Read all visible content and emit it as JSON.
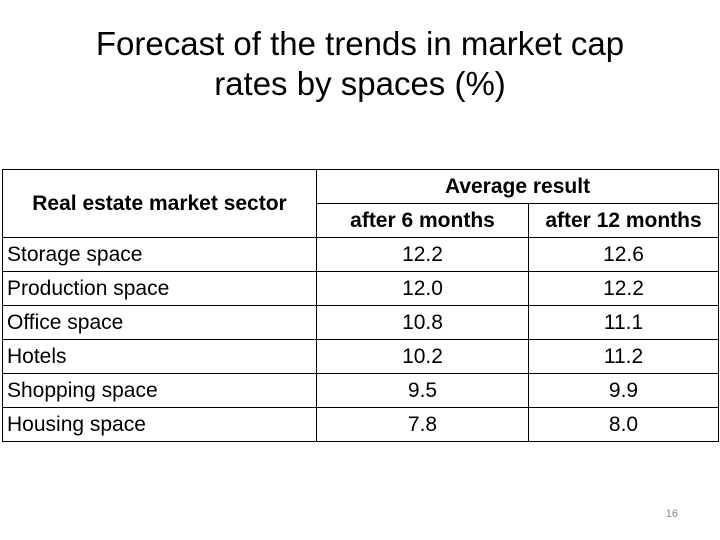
{
  "title": {
    "line1": "Forecast of the trends in market cap",
    "line2": "rates by spaces (%)"
  },
  "table": {
    "sector_header": "Real estate market sector",
    "group_header": "Average result",
    "sub_headers": [
      "after 6 months",
      "after 12 months"
    ],
    "rows": [
      {
        "sector": "Storage space",
        "m6": "12.2",
        "m12": "12.6"
      },
      {
        "sector": "Production space",
        "m6": "12.0",
        "m12": "12.2"
      },
      {
        "sector": "Office space",
        "m6": "10.8",
        "m12": "11.1"
      },
      {
        "sector": "Hotels",
        "m6": "10.2",
        "m12": "11.2"
      },
      {
        "sector": "Shopping space",
        "m6": "9.5",
        "m12": "9.9"
      },
      {
        "sector": "Housing space",
        "m6": "7.8",
        "m12": "8.0"
      }
    ]
  },
  "page_number": "16"
}
